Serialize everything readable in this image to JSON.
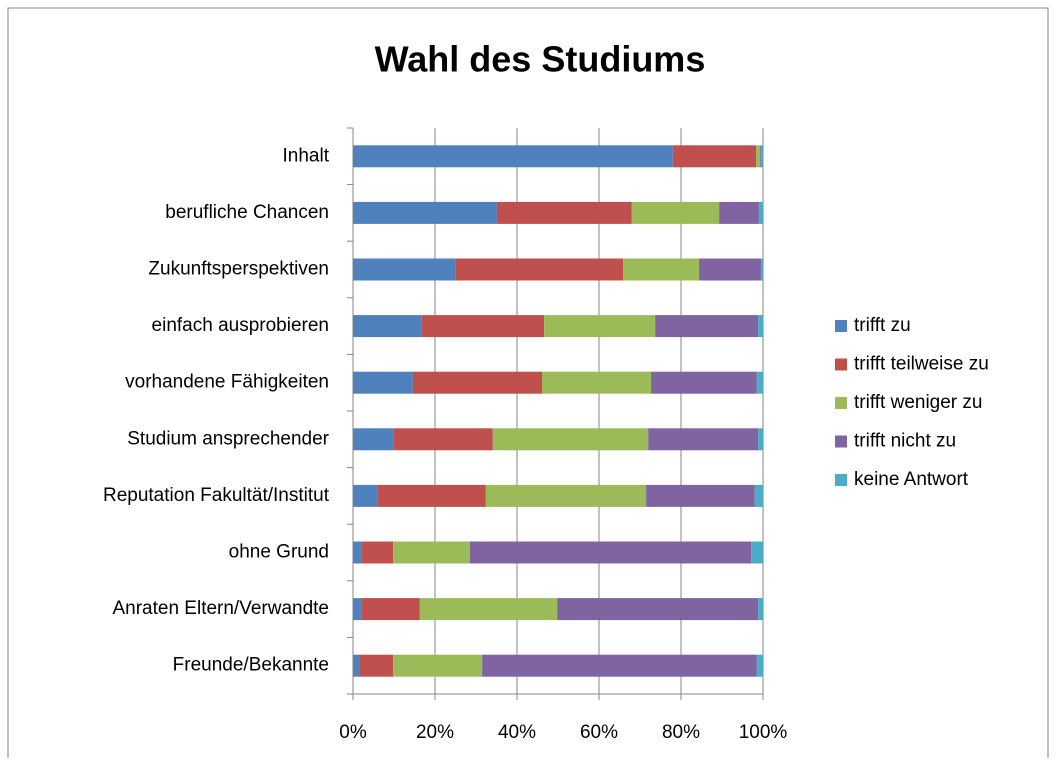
{
  "chart_data": {
    "type": "stacked-barh",
    "title": "Wahl des Studiums",
    "categories": [
      "Inhalt",
      "berufliche Chancen",
      "Zukunftsperspektiven",
      "einfach ausprobieren",
      "vorhandene Fähigkeiten",
      "Studium ansprechender",
      "Reputation Fakultät/Institut",
      "ohne Grund",
      "Anraten Eltern/Verwandte",
      "Freunde/Bekannte"
    ],
    "series": [
      {
        "name": "trifft zu",
        "color": "#4f81bd",
        "values": [
          78,
          35.1,
          25.1,
          16.8,
          14.6,
          9.8,
          5.9,
          2.0,
          2.0,
          1.7
        ]
      },
      {
        "name": "trifft teilweise zu",
        "color": "#c0504d",
        "values": [
          20.3,
          32.9,
          40.8,
          29.8,
          31.5,
          24.3,
          26.5,
          7.8,
          14.3,
          8.1
        ]
      },
      {
        "name": "trifft weniger zu",
        "color": "#9bbb59",
        "values": [
          1,
          21.3,
          18.5,
          27.1,
          26.6,
          37.9,
          39.1,
          18.7,
          33.5,
          21.7
        ]
      },
      {
        "name": "trifft nicht zu",
        "color": "#8064a2",
        "values": [
          0.2,
          9.7,
          15.1,
          25.1,
          25.8,
          26.8,
          26.5,
          68.6,
          49.0,
          67.0
        ]
      },
      {
        "name": "keine Antwort",
        "color": "#4bacc6",
        "values": [
          0.5,
          1.0,
          0.5,
          1.2,
          1.5,
          1.2,
          2.0,
          2.9,
          1.2,
          1.5
        ]
      }
    ],
    "xlim": [
      0,
      100
    ],
    "xticks": [
      {
        "value": 0,
        "label": "0%"
      },
      {
        "value": 20,
        "label": "20%"
      },
      {
        "value": 40,
        "label": "40%"
      },
      {
        "value": 60,
        "label": "60%"
      },
      {
        "value": 80,
        "label": "80%"
      },
      {
        "value": 100,
        "label": "100%"
      }
    ],
    "grid": true,
    "legend": "right"
  }
}
